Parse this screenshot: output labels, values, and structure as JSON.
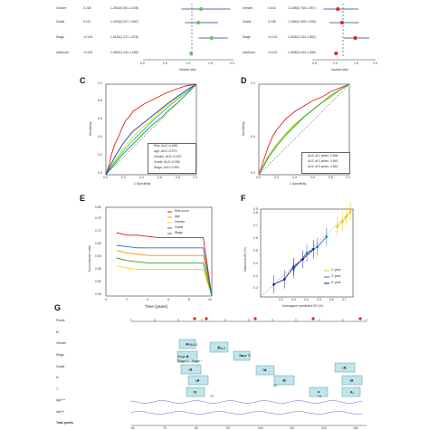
{
  "forest": {
    "left_rows": [
      {
        "label": "Gender",
        "p": "0.238",
        "hr": "1.2810(0.851-1.928)"
      },
      {
        "label": "Grade",
        "p": "0.112",
        "hr": "1.2220(0.927-1.657)"
      },
      {
        "label": "Stage",
        "p": "<0.001",
        "hr": "1.5151(1.227-1.876)"
      },
      {
        "label": "riskScore",
        "p": "<0.001",
        "hr": "1.0630(1.044-1.086)"
      }
    ],
    "right_rows": [
      {
        "label": "Gender",
        "p": "0.644",
        "hr": "1.1050(0.765-1.597)"
      },
      {
        "label": "Grade",
        "p": "0.198",
        "hr": "1.2060(0.906-1.605)"
      },
      {
        "label": "Stage",
        "p": "<0.001",
        "hr": "1.5180(1.244-1.852)"
      },
      {
        "label": "riskScore",
        "p": "<0.001",
        "hr": "1.0630(1.044-1.086)"
      }
    ],
    "left_ticks": [
      "0.0",
      "0.5",
      "1.0",
      "1.5",
      "2.0"
    ],
    "right_ticks": [
      "0.5",
      "1.0",
      "1.5",
      "2.0"
    ],
    "xlabel": "Hazard ratio"
  },
  "panels": {
    "C": "C",
    "D": "D",
    "E": "E",
    "F": "F",
    "G": "G"
  },
  "roc_c": {
    "xlabel": "1-Specificity",
    "ylabel": "Sensitivity",
    "ticks": [
      "0.0",
      "0.2",
      "0.4",
      "0.6",
      "0.8",
      "1.0"
    ],
    "legend": [
      "Risk, AUC=0.688",
      "Age, AUC=0.573",
      "Gender, AUC=0.522",
      "Grade, AUC=0.556",
      "Stage, AUC=0.594"
    ]
  },
  "roc_d": {
    "xlabel": "1-Specificity",
    "ylabel": "Sensitivity",
    "ticks": [
      "0.0",
      "0.2",
      "0.4",
      "0.6",
      "0.8",
      "1.0"
    ],
    "legend": [
      "AUC at 1 years: 0.698",
      "AUC at 3 years: 0.640",
      "AUC at 5 years: 0.640"
    ]
  },
  "cindex": {
    "xlabel": "Time (years)",
    "ylabel": "Concordance index",
    "xticks": [
      "0",
      "2",
      "4",
      "6",
      "8",
      "10"
    ],
    "yticks": [
      "0.45",
      "0.50",
      "0.55",
      "0.60",
      "0.65",
      "0.70",
      "0.75",
      "0.80"
    ],
    "legend": [
      "Risk score",
      "Age",
      "Gender",
      "Grade",
      "Stage"
    ]
  },
  "calib": {
    "xlabel": "Nomogram−predicted OS (%)",
    "ylabel": "Observed OS (%)",
    "ticks": [
      "0.2",
      "0.3",
      "0.4",
      "0.5",
      "0.6",
      "0.7",
      "0.8",
      "0.9"
    ],
    "legend": [
      "1−year",
      "3−year",
      "5−year"
    ]
  },
  "nomogram": {
    "rows": [
      "Points",
      "M",
      "Gender",
      "Stage",
      "Grade",
      "N",
      "T",
      "Age***",
      "risk***",
      "Total points"
    ],
    "box_labels": [
      "FEMALE",
      "MALE",
      "Stage III",
      "Stage I",
      "Stage IV",
      "Stage II",
      "G1",
      "G2",
      "G3",
      "N0",
      "N1",
      "N2",
      "N3",
      "T1",
      "T2",
      "T3",
      "T4"
    ],
    "total_ticks": [
      "60",
      "70",
      "80",
      "90",
      "100",
      "110",
      "120",
      "130"
    ]
  },
  "chart_data": [
    {
      "type": "scatter",
      "title": "",
      "xlabel": "Hazard ratio",
      "categories": [
        "Gender",
        "Grade",
        "Stage",
        "riskScore"
      ],
      "series": [
        {
          "name": "",
          "values": [
            1.281,
            1.222,
            1.515,
            1.063
          ],
          "lower": [
            0.851,
            0.927,
            1.227,
            1.044
          ],
          "upper": [
            1.928,
            1.657,
            1.876,
            1.086
          ]
        },
        {
          "name": "",
          "values": [
            1.105,
            1.206,
            1.518,
            1.063
          ],
          "lower": [
            0.765,
            0.906,
            1.244,
            1.044
          ],
          "upper": [
            1.597,
            1.605,
            1.852,
            1.086
          ]
        }
      ]
    },
    {
      "type": "line",
      "xlabel": "1-Specificity",
      "ylabel": "Sensitivity",
      "xlim": [
        0,
        1
      ],
      "ylim": [
        0,
        1
      ],
      "series": [
        {
          "name": "Risk, AUC=0.688",
          "color": "#e41a1c",
          "x": [
            0,
            0.04,
            0.06,
            0.1,
            0.14,
            0.18,
            0.22,
            0.26,
            0.3,
            0.36,
            0.42,
            0.5,
            0.58,
            0.66,
            0.76,
            0.88,
            1
          ],
          "y": [
            0,
            0.12,
            0.22,
            0.34,
            0.42,
            0.52,
            0.6,
            0.64,
            0.7,
            0.74,
            0.78,
            0.82,
            0.86,
            0.9,
            0.94,
            0.98,
            1
          ]
        },
        {
          "name": "Age, AUC=0.573",
          "color": "#ffd700",
          "x": [
            0,
            0.1,
            0.2,
            0.3,
            0.4,
            0.5,
            0.6,
            0.7,
            0.8,
            0.9,
            1
          ],
          "y": [
            0,
            0.16,
            0.3,
            0.42,
            0.52,
            0.6,
            0.7,
            0.78,
            0.86,
            0.94,
            1
          ]
        },
        {
          "name": "Gender, AUC=0.522",
          "color": "#2ca02c",
          "x": [
            0,
            0.1,
            0.2,
            0.3,
            0.4,
            0.5,
            0.6,
            0.7,
            0.8,
            0.9,
            1
          ],
          "y": [
            0,
            0.12,
            0.24,
            0.34,
            0.44,
            0.54,
            0.62,
            0.72,
            0.8,
            0.9,
            1
          ]
        },
        {
          "name": "Grade, AUC=0.556",
          "color": "#17becf",
          "x": [
            0,
            0.1,
            0.2,
            0.3,
            0.4,
            0.5,
            0.6,
            0.7,
            0.8,
            0.9,
            1
          ],
          "y": [
            0,
            0.14,
            0.27,
            0.38,
            0.48,
            0.58,
            0.67,
            0.76,
            0.84,
            0.92,
            1
          ]
        },
        {
          "name": "Stage, AUC=0.594",
          "color": "#1f3f99",
          "x": [
            0,
            0.1,
            0.2,
            0.3,
            0.4,
            0.5,
            0.6,
            0.7,
            0.8,
            0.9,
            1
          ],
          "y": [
            0,
            0.2,
            0.36,
            0.48,
            0.56,
            0.64,
            0.72,
            0.8,
            0.87,
            0.94,
            1
          ]
        }
      ]
    },
    {
      "type": "line",
      "xlabel": "1-Specificity",
      "ylabel": "Sensitivity",
      "xlim": [
        0,
        1
      ],
      "ylim": [
        0,
        1
      ],
      "series": [
        {
          "name": "AUC at 1 years: 0.698",
          "color": "#e41a1c",
          "x": [
            0,
            0.05,
            0.1,
            0.15,
            0.2,
            0.3,
            0.4,
            0.5,
            0.6,
            0.7,
            0.8,
            0.9,
            1
          ],
          "y": [
            0,
            0.15,
            0.3,
            0.42,
            0.5,
            0.62,
            0.7,
            0.76,
            0.82,
            0.86,
            0.92,
            0.96,
            1
          ]
        },
        {
          "name": "AUC at 3 years: 0.640",
          "color": "#b8c000",
          "x": [
            0,
            0.1,
            0.2,
            0.3,
            0.4,
            0.5,
            0.6,
            0.7,
            0.8,
            0.9,
            1
          ],
          "y": [
            0,
            0.2,
            0.34,
            0.46,
            0.56,
            0.64,
            0.72,
            0.8,
            0.86,
            0.94,
            1
          ]
        },
        {
          "name": "AUC at 5 years: 0.640",
          "color": "#2ca02c",
          "x": [
            0,
            0.1,
            0.2,
            0.3,
            0.4,
            0.5,
            0.6,
            0.7,
            0.8,
            0.9,
            1
          ],
          "y": [
            0,
            0.18,
            0.32,
            0.44,
            0.54,
            0.64,
            0.72,
            0.8,
            0.88,
            0.94,
            1
          ]
        }
      ]
    },
    {
      "type": "line",
      "xlabel": "Time (years)",
      "ylabel": "Concordance index",
      "xlim": [
        0,
        10
      ],
      "ylim": [
        0.45,
        0.8
      ],
      "series": [
        {
          "name": "Risk score",
          "color": "#e41a1c",
          "x": [
            1,
            2,
            3,
            4,
            5,
            6,
            7,
            8,
            9,
            9.2,
            10
          ],
          "y": [
            0.7,
            0.69,
            0.69,
            0.685,
            0.68,
            0.68,
            0.68,
            0.68,
            0.68,
            0.68,
            0.45
          ]
        },
        {
          "name": "Age",
          "color": "#ff8c00",
          "x": [
            1,
            2,
            3,
            4,
            5,
            6,
            7,
            8,
            9,
            9.2,
            10
          ],
          "y": [
            0.63,
            0.62,
            0.615,
            0.61,
            0.61,
            0.61,
            0.61,
            0.61,
            0.61,
            0.61,
            0.45
          ]
        },
        {
          "name": "Gender",
          "color": "#ffd700",
          "x": [
            1,
            2,
            3,
            4,
            5,
            6,
            7,
            8,
            9,
            9.2,
            10
          ],
          "y": [
            0.57,
            0.56,
            0.555,
            0.555,
            0.555,
            0.555,
            0.555,
            0.555,
            0.555,
            0.555,
            0.45
          ]
        },
        {
          "name": "Grade",
          "color": "#2ca02c",
          "x": [
            1,
            2,
            3,
            4,
            5,
            6,
            7,
            8,
            9,
            9.2,
            10
          ],
          "y": [
            0.6,
            0.59,
            0.585,
            0.58,
            0.58,
            0.58,
            0.58,
            0.58,
            0.58,
            0.58,
            0.45
          ]
        },
        {
          "name": "Stage",
          "color": "#1f77b4",
          "x": [
            1,
            2,
            3,
            4,
            5,
            6,
            7,
            8,
            9,
            9.2,
            10
          ],
          "y": [
            0.65,
            0.645,
            0.64,
            0.64,
            0.64,
            0.64,
            0.64,
            0.64,
            0.64,
            0.64,
            0.45
          ]
        }
      ]
    },
    {
      "type": "line",
      "xlabel": "Nomogram−predicted OS (%)",
      "ylabel": "Observed OS (%)",
      "xlim": [
        0.2,
        0.9
      ],
      "ylim": [
        0.2,
        0.9
      ],
      "series": [
        {
          "name": "1−year",
          "color": "#e8c400",
          "x": [
            0.78,
            0.82,
            0.85,
            0.88
          ],
          "y": [
            0.76,
            0.8,
            0.84,
            0.88
          ]
        },
        {
          "name": "3−year",
          "color": "#1f77b4",
          "x": [
            0.45,
            0.55,
            0.63,
            0.7
          ],
          "y": [
            0.42,
            0.55,
            0.6,
            0.68
          ]
        },
        {
          "name": "5−year",
          "color": "#1a1a8c",
          "x": [
            0.3,
            0.38,
            0.45,
            0.52,
            0.6
          ],
          "y": [
            0.3,
            0.34,
            0.44,
            0.5,
            0.58
          ]
        }
      ]
    }
  ]
}
